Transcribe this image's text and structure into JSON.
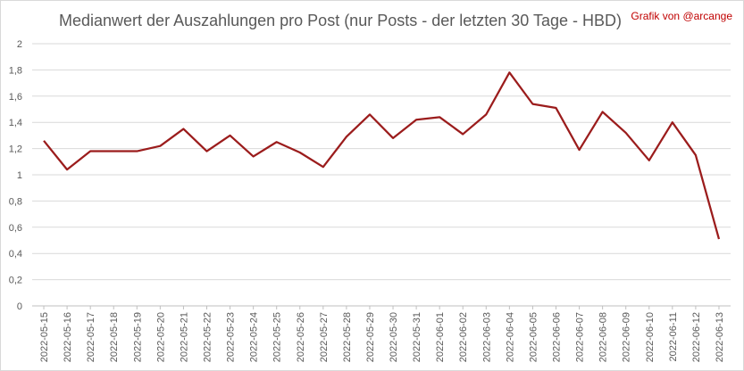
{
  "chart_data": {
    "type": "line",
    "title": "Medianwert der Auszahlungen pro Post (nur Posts - der letzten 30 Tage - HBD)",
    "credit": "Grafik von @arcange",
    "xlabel": "",
    "ylabel": "",
    "ylim": [
      0,
      2
    ],
    "yticks": [
      "0",
      "0,2",
      "0,4",
      "0,6",
      "0,8",
      "1",
      "1,2",
      "1,4",
      "1,6",
      "1,8",
      "2"
    ],
    "grid": true,
    "legend": "none",
    "line_color": "#9b1c1c",
    "x": [
      "2022-05-15",
      "2022-05-16",
      "2022-05-17",
      "2022-05-18",
      "2022-05-19",
      "2022-05-20",
      "2022-05-21",
      "2022-05-22",
      "2022-05-23",
      "2022-05-24",
      "2022-05-25",
      "2022-05-26",
      "2022-05-27",
      "2022-05-28",
      "2022-05-29",
      "2022-05-30",
      "2022-05-31",
      "2022-06-01",
      "2022-06-02",
      "2022-06-03",
      "2022-06-04",
      "2022-06-05",
      "2022-06-06",
      "2022-06-07",
      "2022-06-08",
      "2022-06-09",
      "2022-06-10",
      "2022-06-11",
      "2022-06-12",
      "2022-06-13"
    ],
    "series": [
      {
        "values": [
          1.26,
          1.04,
          1.18,
          1.18,
          1.18,
          1.22,
          1.35,
          1.18,
          1.3,
          1.14,
          1.25,
          1.17,
          1.06,
          1.29,
          1.46,
          1.28,
          1.42,
          1.44,
          1.31,
          1.46,
          1.78,
          1.54,
          1.51,
          1.19,
          1.48,
          1.32,
          1.11,
          1.4,
          1.15,
          0.51
        ]
      }
    ]
  }
}
